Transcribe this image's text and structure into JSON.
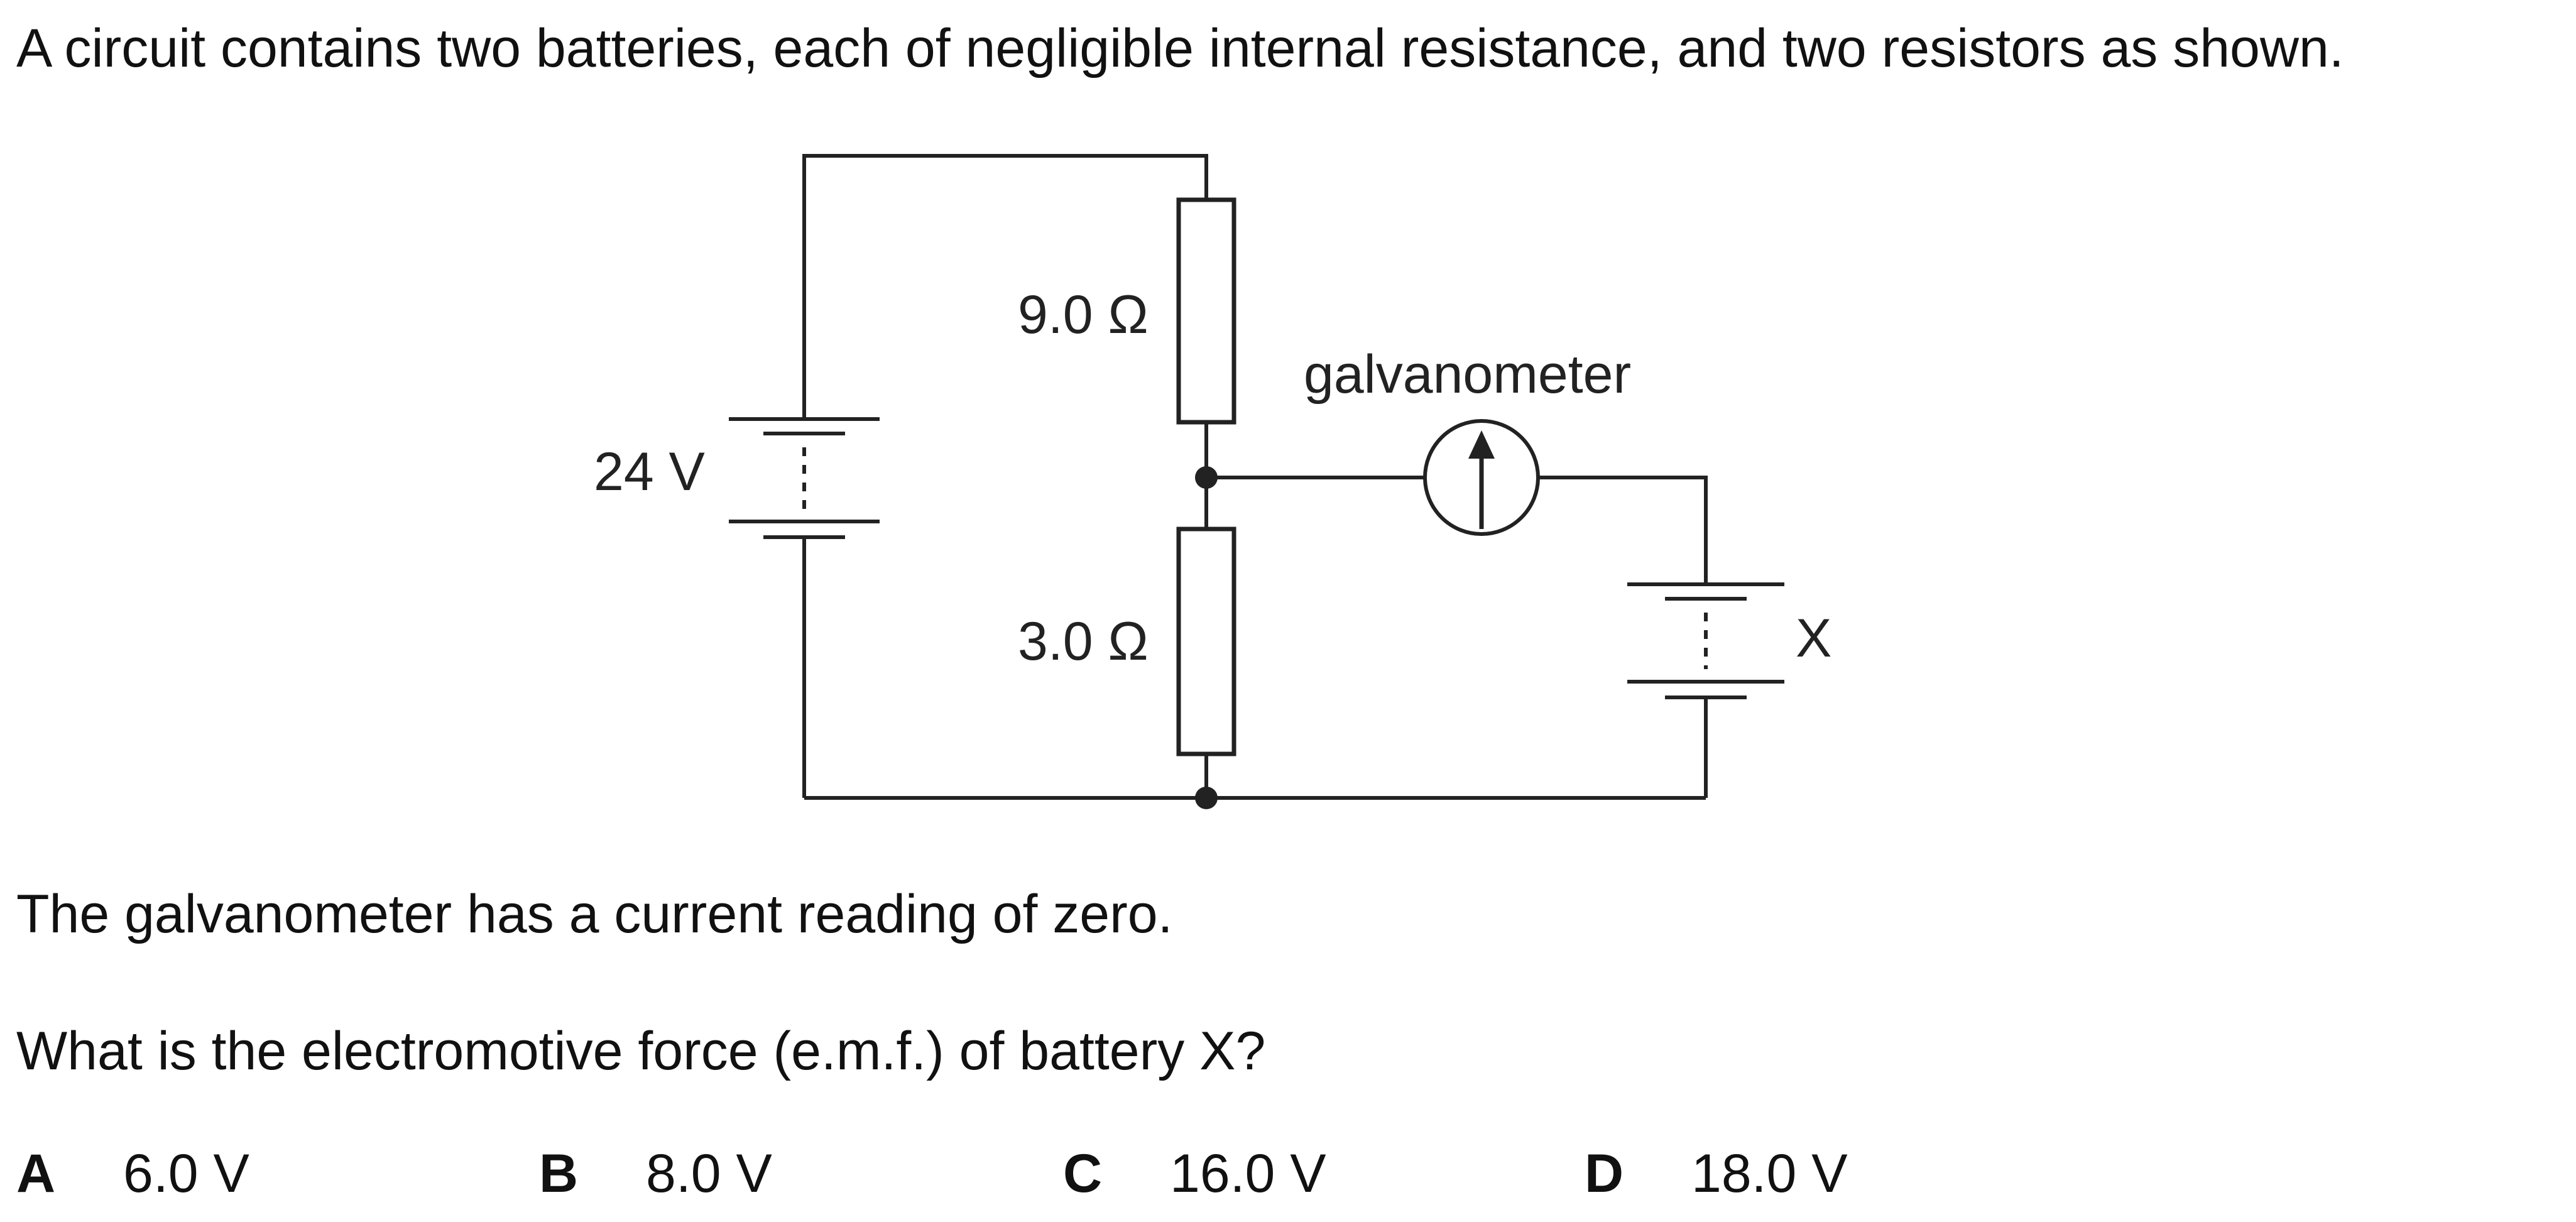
{
  "question": {
    "intro": "A circuit contains two batteries, each of negligible internal resistance, and two resistors as shown.",
    "statement": "The galvanometer has a current reading of zero.",
    "prompt": "What is the electromotive force (e.m.f.) of battery X?"
  },
  "diagram": {
    "battery_main_label": "24 V",
    "battery_x_label": "X",
    "resistor_top_label": "9.0 Ω",
    "resistor_bottom_label": "3.0 Ω",
    "galvanometer_label": "galvanometer"
  },
  "options": [
    {
      "letter": "A",
      "value": "6.0 V"
    },
    {
      "letter": "B",
      "value": "8.0 V"
    },
    {
      "letter": "C",
      "value": "16.0 V"
    },
    {
      "letter": "D",
      "value": "18.0 V"
    }
  ],
  "colors": {
    "ink": "#222222",
    "background": "#ffffff"
  }
}
